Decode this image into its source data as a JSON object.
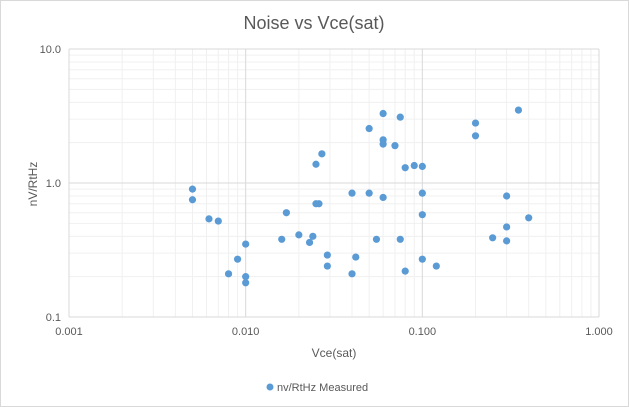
{
  "chart_data": {
    "type": "scatter",
    "title": "Noise vs Vce(sat)",
    "xlabel": "Vce(sat)",
    "ylabel": "nV/RtHz",
    "xscale": "log",
    "yscale": "log",
    "xlim": [
      0.001,
      1.0
    ],
    "ylim": [
      0.1,
      10.0
    ],
    "x_ticks": [
      "0.001",
      "0.010",
      "0.100",
      "1.000"
    ],
    "y_ticks": [
      "0.1",
      "1.0",
      "10.0"
    ],
    "grid": true,
    "legend": "bottom",
    "color": "#5b9bd5",
    "series": [
      {
        "name": "nv/RtHz Measured",
        "points": [
          [
            0.005,
            0.9
          ],
          [
            0.005,
            0.75
          ],
          [
            0.0062,
            0.54
          ],
          [
            0.007,
            0.52
          ],
          [
            0.008,
            0.21
          ],
          [
            0.009,
            0.27
          ],
          [
            0.01,
            0.35
          ],
          [
            0.01,
            0.2
          ],
          [
            0.01,
            0.18
          ],
          [
            0.016,
            0.38
          ],
          [
            0.017,
            0.6
          ],
          [
            0.02,
            0.41
          ],
          [
            0.023,
            0.36
          ],
          [
            0.024,
            0.4
          ],
          [
            0.025,
            1.38
          ],
          [
            0.025,
            0.7
          ],
          [
            0.026,
            0.7
          ],
          [
            0.027,
            1.65
          ],
          [
            0.029,
            0.29
          ],
          [
            0.029,
            0.24
          ],
          [
            0.04,
            0.84
          ],
          [
            0.04,
            0.21
          ],
          [
            0.042,
            0.28
          ],
          [
            0.05,
            2.55
          ],
          [
            0.05,
            0.84
          ],
          [
            0.055,
            0.38
          ],
          [
            0.06,
            3.3
          ],
          [
            0.06,
            2.1
          ],
          [
            0.06,
            1.95
          ],
          [
            0.06,
            0.78
          ],
          [
            0.07,
            1.9
          ],
          [
            0.075,
            3.1
          ],
          [
            0.075,
            0.38
          ],
          [
            0.08,
            1.3
          ],
          [
            0.08,
            0.22
          ],
          [
            0.09,
            1.35
          ],
          [
            0.1,
            1.33
          ],
          [
            0.1,
            0.84
          ],
          [
            0.1,
            0.58
          ],
          [
            0.1,
            0.27
          ],
          [
            0.12,
            0.24
          ],
          [
            0.2,
            2.8
          ],
          [
            0.2,
            2.25
          ],
          [
            0.25,
            0.39
          ],
          [
            0.3,
            0.8
          ],
          [
            0.3,
            0.47
          ],
          [
            0.3,
            0.37
          ],
          [
            0.35,
            3.5
          ],
          [
            0.4,
            0.55
          ]
        ]
      }
    ]
  }
}
